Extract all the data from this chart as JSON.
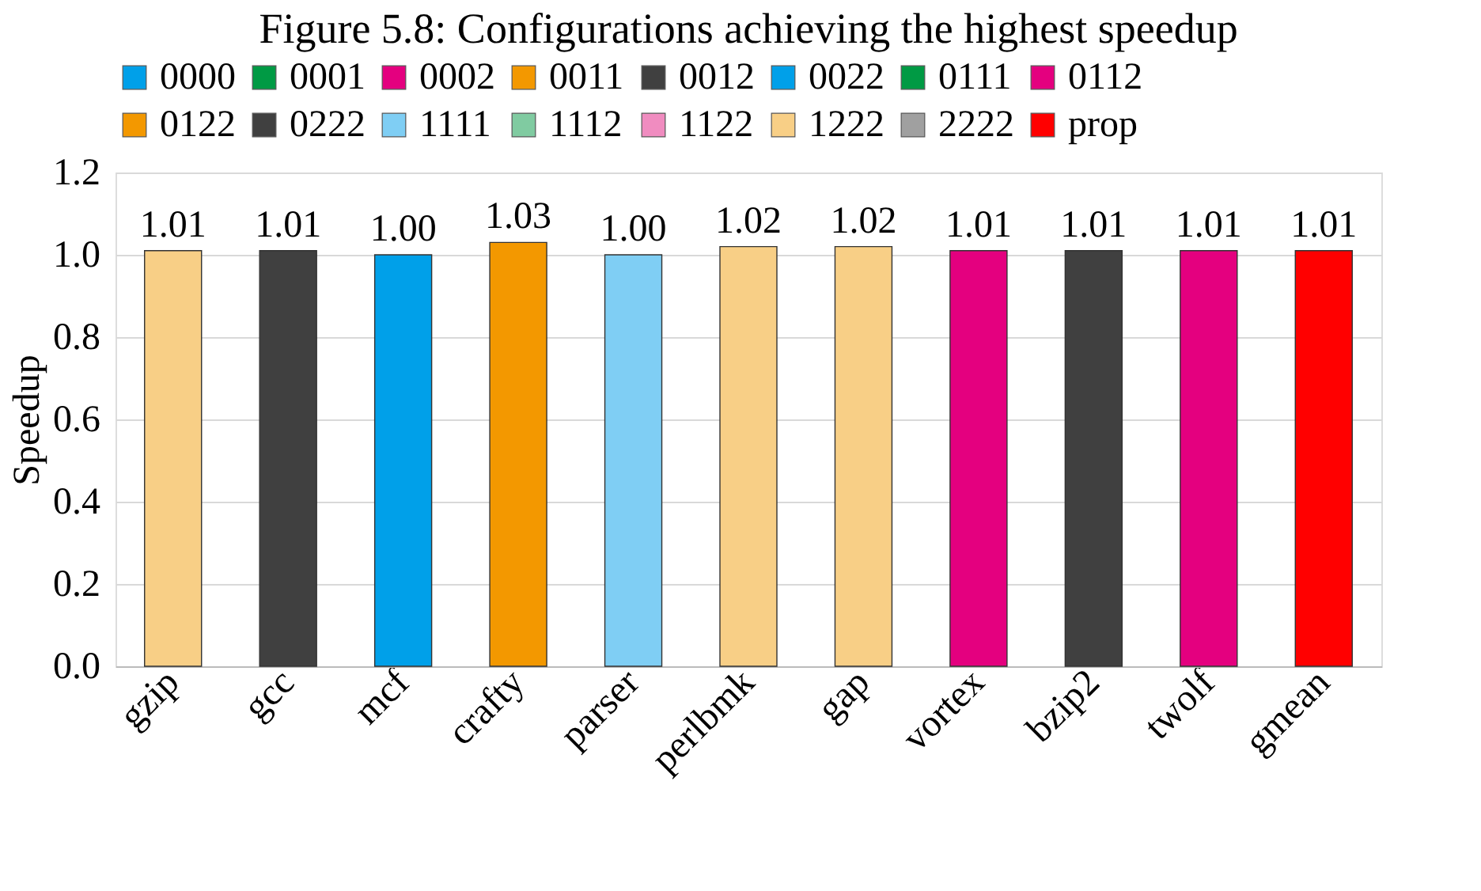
{
  "chart_data": {
    "type": "bar",
    "title": "Figure 5.8: Configurations achieving the highest speedup",
    "ylabel": "Speedup",
    "categories": [
      "gzip",
      "gcc",
      "mcf",
      "crafty",
      "parser",
      "perlbmk",
      "gap",
      "vortex",
      "bzip2",
      "twolf",
      "gmean"
    ],
    "series": [
      {
        "name": "0000",
        "color": "#00a0e9",
        "values": [
          null,
          null,
          1.0,
          null,
          null,
          null,
          null,
          null,
          null,
          null,
          null
        ],
        "value_labels": [
          null,
          null,
          "1.00",
          null,
          null,
          null,
          null,
          null,
          null,
          null,
          null
        ]
      },
      {
        "name": "0001",
        "color": "#009a44",
        "values": [
          null,
          null,
          null,
          null,
          null,
          null,
          null,
          null,
          null,
          null,
          null
        ]
      },
      {
        "name": "0002",
        "color": "#e4007f",
        "values": [
          null,
          null,
          null,
          null,
          null,
          null,
          null,
          null,
          null,
          null,
          null
        ]
      },
      {
        "name": "0011",
        "color": "#f39800",
        "values": [
          null,
          null,
          null,
          null,
          null,
          null,
          null,
          null,
          null,
          null,
          null
        ]
      },
      {
        "name": "0012",
        "color": "#404040",
        "values": [
          null,
          null,
          null,
          null,
          null,
          null,
          null,
          null,
          null,
          null,
          null
        ]
      },
      {
        "name": "0022",
        "color": "#00a0e9",
        "values": [
          null,
          null,
          null,
          null,
          null,
          null,
          null,
          null,
          null,
          null,
          null
        ]
      },
      {
        "name": "0111",
        "color": "#009a44",
        "values": [
          null,
          null,
          null,
          null,
          null,
          null,
          null,
          null,
          null,
          null,
          null
        ]
      },
      {
        "name": "0112",
        "color": "#e4007f",
        "values": [
          null,
          null,
          null,
          null,
          null,
          null,
          null,
          1.01,
          null,
          1.01,
          null
        ],
        "value_labels": [
          null,
          null,
          null,
          null,
          null,
          null,
          null,
          "1.01",
          null,
          "1.01",
          null
        ]
      },
      {
        "name": "0122",
        "color": "#f39800",
        "values": [
          null,
          null,
          null,
          1.03,
          null,
          null,
          null,
          null,
          null,
          null,
          null
        ],
        "value_labels": [
          null,
          null,
          null,
          "1.03",
          null,
          null,
          null,
          null,
          null,
          null,
          null
        ]
      },
      {
        "name": "0222",
        "color": "#404040",
        "values": [
          null,
          1.01,
          null,
          null,
          null,
          null,
          null,
          null,
          1.01,
          null,
          null
        ],
        "value_labels": [
          null,
          "1.01",
          null,
          null,
          null,
          null,
          null,
          null,
          "1.01",
          null,
          null
        ]
      },
      {
        "name": "1111",
        "color": "#7fcef4",
        "values": [
          null,
          null,
          null,
          null,
          1.0,
          null,
          null,
          null,
          null,
          null,
          null
        ],
        "value_labels": [
          null,
          null,
          null,
          null,
          "1.00",
          null,
          null,
          null,
          null,
          null,
          null
        ]
      },
      {
        "name": "1112",
        "color": "#80cba1",
        "values": [
          null,
          null,
          null,
          null,
          null,
          null,
          null,
          null,
          null,
          null,
          null
        ]
      },
      {
        "name": "1122",
        "color": "#f08cc0",
        "values": [
          null,
          null,
          null,
          null,
          null,
          null,
          null,
          null,
          null,
          null,
          null
        ]
      },
      {
        "name": "1222",
        "color": "#f8cf86",
        "values": [
          1.01,
          null,
          null,
          null,
          null,
          1.02,
          1.02,
          null,
          null,
          null,
          null
        ],
        "value_labels": [
          "1.01",
          null,
          null,
          null,
          null,
          "1.02",
          "1.02",
          null,
          null,
          null,
          null
        ]
      },
      {
        "name": "2222",
        "color": "#a0a0a0",
        "values": [
          null,
          null,
          null,
          null,
          null,
          null,
          null,
          null,
          null,
          null,
          null
        ]
      },
      {
        "name": "prop",
        "color": "#ff0000",
        "values": [
          null,
          null,
          null,
          null,
          null,
          null,
          null,
          null,
          null,
          null,
          1.01
        ],
        "value_labels": [
          null,
          null,
          null,
          null,
          null,
          null,
          null,
          null,
          null,
          null,
          "1.01"
        ]
      }
    ],
    "ylim": [
      0,
      1.2
    ],
    "yticks": [
      {
        "value": 0,
        "label": "0.0"
      },
      {
        "value": 0.2,
        "label": "0.2"
      },
      {
        "value": 0.4,
        "label": "0.4"
      },
      {
        "value": 0.6,
        "label": "0.6"
      },
      {
        "value": 0.8,
        "label": "0.8"
      },
      {
        "value": 1.0,
        "label": "1.0"
      },
      {
        "value": 1.2,
        "label": "1.2"
      }
    ],
    "grid": "y",
    "legend": "top"
  }
}
